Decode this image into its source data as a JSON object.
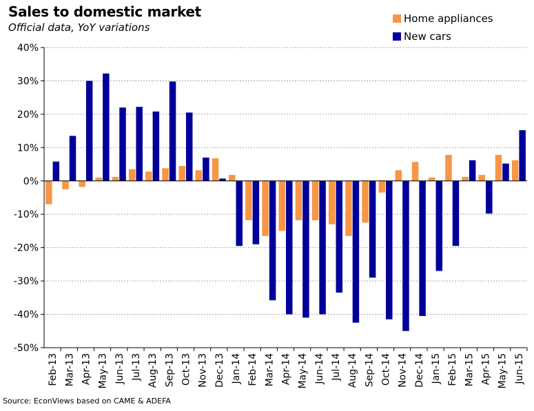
{
  "title": "Sales to domestic market",
  "subtitle": "Official data, YoY variations",
  "source": "Source: EconViews based on CAME & ADEFA",
  "colors": {
    "home_appliances": "#F79646",
    "new_cars": "#000099",
    "grid": "#a6a6a6",
    "axis": "#000000"
  },
  "chart_data": {
    "type": "bar",
    "categories": [
      "Feb-13",
      "Mar-13",
      "Apr-13",
      "May-13",
      "Jun-13",
      "Jul-13",
      "Aug-13",
      "Sep-13",
      "Oct-13",
      "Nov-13",
      "Dec-13",
      "Jan-14",
      "Feb-14",
      "Mar-14",
      "Apr-14",
      "May-14",
      "Jun-14",
      "Jul-14",
      "Aug-14",
      "Sep-14",
      "Oct-14",
      "Nov-14",
      "Dec-14",
      "Jan-15",
      "Feb-15",
      "Mar-15",
      "Apr-15",
      "May-15",
      "Jun-15"
    ],
    "series": [
      {
        "name": "Home appliances",
        "values": [
          -7,
          -2.5,
          -1.8,
          1,
          1.2,
          3.5,
          2.8,
          3.8,
          4.5,
          3.2,
          6.8,
          1.8,
          -11.8,
          -16.5,
          -15,
          -11.8,
          -11.8,
          -13,
          -16.5,
          -12.5,
          -3.5,
          3.2,
          5.7,
          1,
          7.8,
          1.2,
          1.8,
          7.8,
          6.2
        ]
      },
      {
        "name": "New cars",
        "values": [
          5.8,
          13.5,
          30,
          32.2,
          22,
          22.2,
          20.8,
          29.8,
          20.5,
          7,
          0.7,
          -19.5,
          -19,
          -35.8,
          -40,
          -41,
          -40,
          -33.5,
          -42.5,
          -29,
          -41.5,
          -45,
          -40.5,
          -27,
          -19.5,
          6.2,
          -9.8,
          5.2,
          15.2
        ]
      }
    ],
    "ylim": [
      -50,
      40
    ],
    "yticks": [
      "40%",
      "30%",
      "20%",
      "10%",
      "0%",
      "-10%",
      "-20%",
      "-30%",
      "-40%",
      "-50%"
    ],
    "ytick_values": [
      40,
      30,
      20,
      10,
      0,
      -10,
      -20,
      -30,
      -40,
      -50
    ],
    "grid": true,
    "legend": "top-right"
  }
}
